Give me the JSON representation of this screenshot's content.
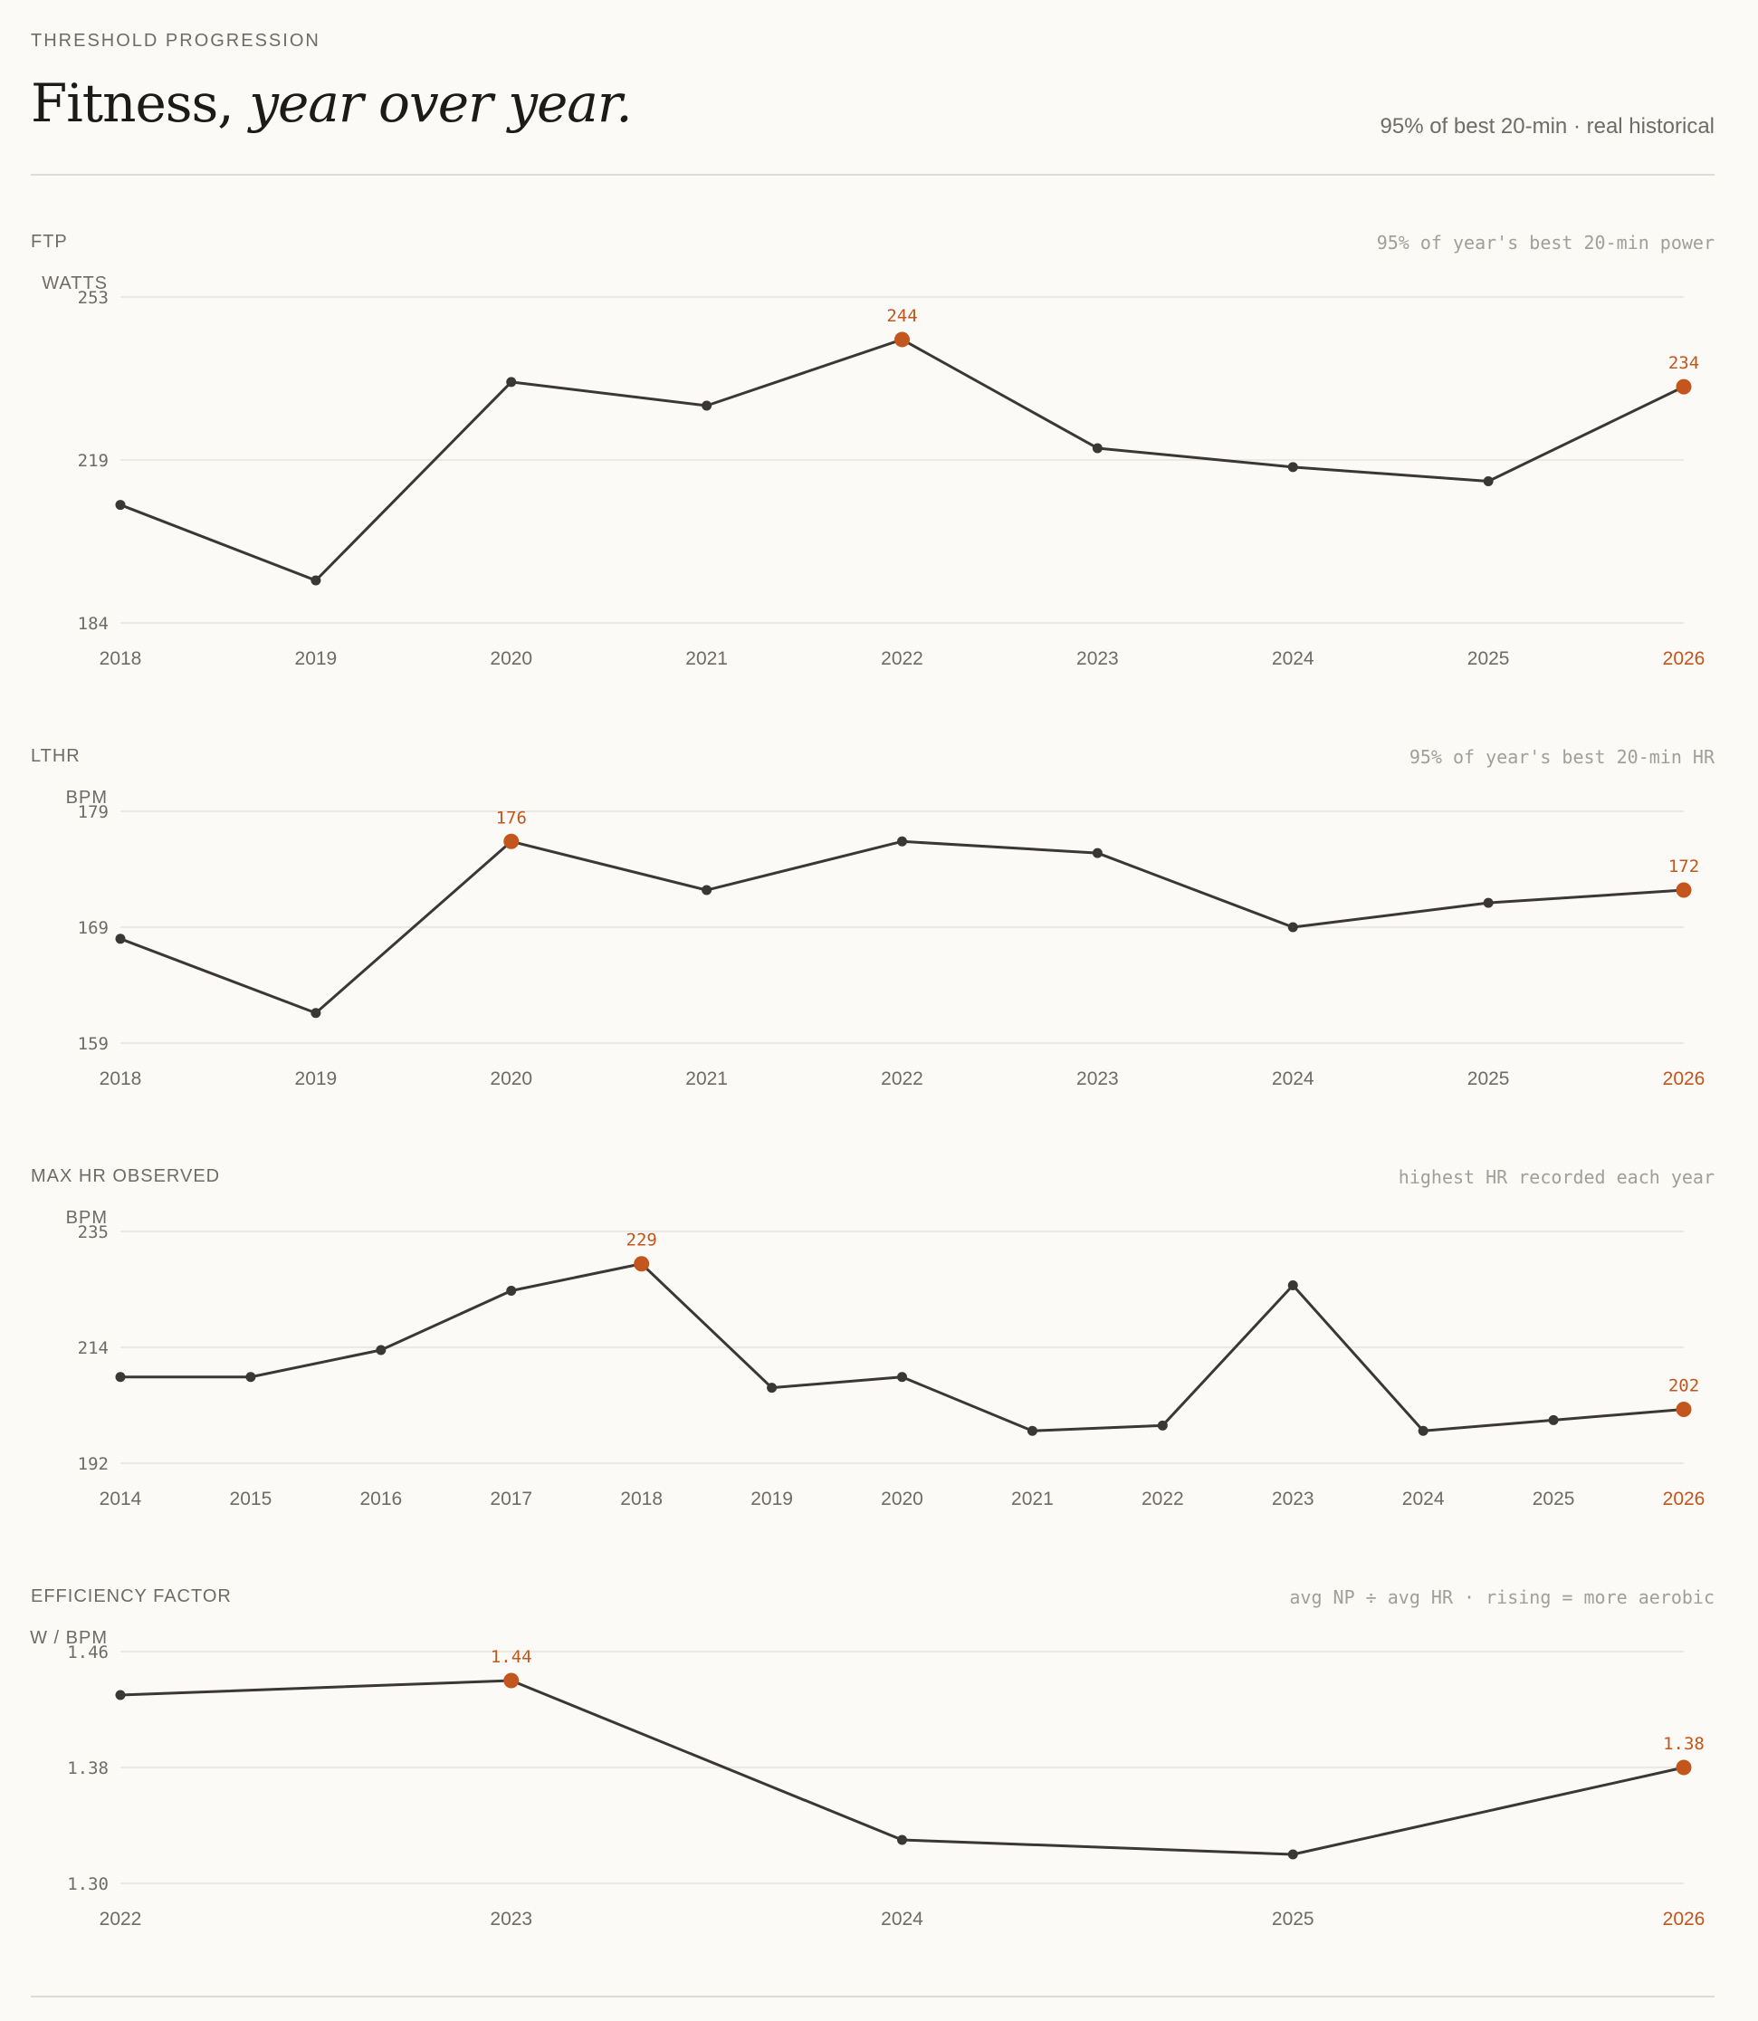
{
  "header": {
    "eyebrow": "THRESHOLD PROGRESSION",
    "title_main": "Fitness,",
    "title_em": "year over year.",
    "subtitle": "95% of best 20-min · real historical"
  },
  "colors": {
    "line": "#3a3735",
    "highlight": "#c2561c",
    "grid": "#e6e3de"
  },
  "chart_data": [
    {
      "type": "line",
      "label": "FTP",
      "note": "95% of year's best 20-min power",
      "ylabel": "WATTS",
      "yticks": [
        "253",
        "219",
        "184"
      ],
      "ylim": [
        184,
        253
      ],
      "x": [
        "2018",
        "2019",
        "2020",
        "2021",
        "2022",
        "2023",
        "2024",
        "2025",
        "2026"
      ],
      "values": [
        209,
        193,
        235,
        230,
        244,
        221,
        217,
        214,
        234
      ],
      "highlight_indices": [
        4,
        8
      ],
      "highlight_labels": [
        "244",
        "234"
      ]
    },
    {
      "type": "line",
      "label": "LTHR",
      "note": "95% of year's best 20-min HR",
      "ylabel": "BPM",
      "yticks": [
        "179",
        "169",
        "159"
      ],
      "ylim": [
        159,
        179
      ],
      "x": [
        "2018",
        "2019",
        "2020",
        "2021",
        "2022",
        "2023",
        "2024",
        "2025",
        "2026"
      ],
      "values": [
        168,
        161.6,
        176.4,
        172.2,
        176.4,
        175.4,
        169,
        171.1,
        172.2
      ],
      "highlight_indices": [
        2,
        8
      ],
      "highlight_labels": [
        "176",
        "172"
      ]
    },
    {
      "type": "line",
      "label": "MAX HR OBSERVED",
      "note": "highest HR recorded each year",
      "ylabel": "BPM",
      "yticks": [
        "235",
        "214",
        "192"
      ],
      "ylim": [
        192,
        235
      ],
      "x": [
        "2014",
        "2015",
        "2016",
        "2017",
        "2018",
        "2019",
        "2020",
        "2021",
        "2022",
        "2023",
        "2024",
        "2025",
        "2026"
      ],
      "values": [
        208,
        208,
        213,
        224,
        229,
        206,
        208,
        198,
        199,
        225,
        198,
        200,
        202
      ],
      "highlight_indices": [
        4,
        12
      ],
      "highlight_labels": [
        "229",
        "202"
      ]
    },
    {
      "type": "line",
      "label": "EFFICIENCY FACTOR",
      "note": "avg NP ÷ avg HR · rising = more aerobic",
      "ylabel": "W / BPM",
      "yticks": [
        "1.46",
        "1.38",
        "1.30"
      ],
      "ylim": [
        1.3,
        1.46
      ],
      "x": [
        "2022",
        "2023",
        "2024",
        "2025",
        "2026"
      ],
      "values": [
        1.43,
        1.44,
        1.33,
        1.32,
        1.38
      ],
      "highlight_indices": [
        1,
        4
      ],
      "highlight_labels": [
        "1.44",
        "1.38"
      ]
    }
  ]
}
